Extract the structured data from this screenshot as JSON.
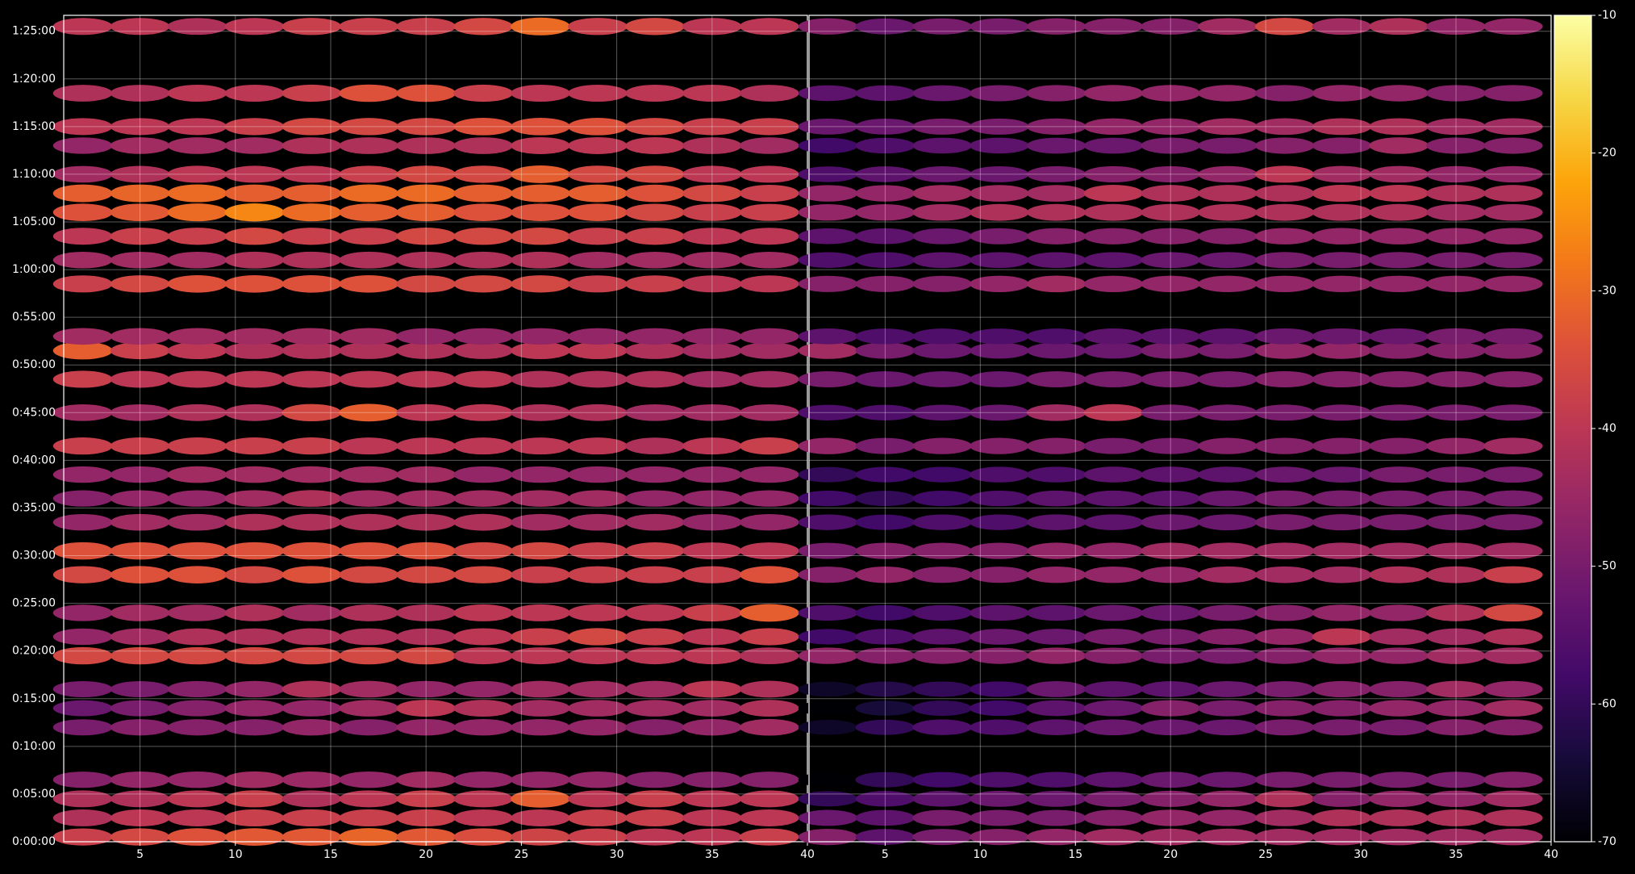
{
  "chart_data": [
    {
      "type": "heatmap",
      "colormap": "inferno",
      "grid": true,
      "xlim": [
        1,
        40
      ],
      "ylim": [
        0,
        5200
      ],
      "xticks": [
        5,
        10,
        15,
        20,
        25,
        30,
        35,
        40
      ],
      "yticks": [
        {
          "value": 0,
          "label": "0:00:00"
        },
        {
          "value": 300,
          "label": "0:05:00"
        },
        {
          "value": 600,
          "label": "0:10:00"
        },
        {
          "value": 900,
          "label": "0:15:00"
        },
        {
          "value": 1200,
          "label": "0:20:00"
        },
        {
          "value": 1500,
          "label": "0:25:00"
        },
        {
          "value": 1800,
          "label": "0:30:00"
        },
        {
          "value": 2100,
          "label": "0:35:00"
        },
        {
          "value": 2400,
          "label": "0:40:00"
        },
        {
          "value": 2700,
          "label": "0:45:00"
        },
        {
          "value": 3000,
          "label": "0:50:00"
        },
        {
          "value": 3300,
          "label": "0:55:00"
        },
        {
          "value": 3600,
          "label": "1:00:00"
        },
        {
          "value": 3900,
          "label": "1:05:00"
        },
        {
          "value": 4200,
          "label": "1:10:00"
        },
        {
          "value": 4500,
          "label": "1:15:00"
        },
        {
          "value": 4800,
          "label": "1:20:00"
        },
        {
          "value": 5100,
          "label": "1:25:00"
        }
      ],
      "x": [
        2,
        5,
        8,
        11,
        14,
        17,
        20,
        23,
        26,
        29,
        32,
        35,
        38
      ],
      "y": [
        30,
        150,
        270,
        390,
        720,
        840,
        960,
        1170,
        1290,
        1440,
        1680,
        1830,
        2010,
        2160,
        2310,
        2490,
        2700,
        2910,
        3090,
        3180,
        3510,
        3660,
        3810,
        3960,
        4080,
        4200,
        4380,
        4500,
        4710,
        5130
      ],
      "z": [
        [
          -38,
          -36,
          -34,
          -33,
          -33,
          -31,
          -33,
          -35,
          -37,
          -38,
          -40,
          -40,
          -38
        ],
        [
          -42,
          -40,
          -40,
          -38,
          -38,
          -38,
          -38,
          -40,
          -40,
          -38,
          -38,
          -40,
          -40
        ],
        [
          -42,
          -42,
          -40,
          -38,
          -42,
          -40,
          -38,
          -40,
          -32,
          -40,
          -38,
          -40,
          -40
        ],
        [
          -48,
          -46,
          -46,
          -44,
          -45,
          -46,
          -44,
          -46,
          -46,
          -46,
          -48,
          -48,
          -48
        ],
        [
          -50,
          -48,
          -48,
          -48,
          -46,
          -48,
          -46,
          -46,
          -46,
          -46,
          -48,
          -46,
          -44
        ],
        [
          -52,
          -50,
          -48,
          -46,
          -46,
          -44,
          -40,
          -42,
          -44,
          -44,
          -44,
          -44,
          -42
        ],
        [
          -50,
          -50,
          -48,
          -46,
          -42,
          -44,
          -46,
          -46,
          -44,
          -44,
          -44,
          -40,
          -42
        ],
        [
          -36,
          -36,
          -36,
          -36,
          -36,
          -36,
          -36,
          -40,
          -40,
          -40,
          -40,
          -40,
          -42
        ],
        [
          -46,
          -44,
          -42,
          -42,
          -42,
          -42,
          -42,
          -40,
          -38,
          -36,
          -38,
          -40,
          -38
        ],
        [
          -46,
          -44,
          -44,
          -42,
          -44,
          -42,
          -42,
          -40,
          -40,
          -40,
          -40,
          -38,
          -32
        ],
        [
          -36,
          -34,
          -34,
          -36,
          -34,
          -36,
          -36,
          -36,
          -38,
          -38,
          -38,
          -38,
          -34
        ],
        [
          -34,
          -34,
          -34,
          -34,
          -34,
          -34,
          -34,
          -36,
          -36,
          -38,
          -38,
          -40,
          -40
        ],
        [
          -46,
          -44,
          -44,
          -42,
          -42,
          -42,
          -42,
          -42,
          -44,
          -44,
          -44,
          -46,
          -46
        ],
        [
          -48,
          -46,
          -46,
          -44,
          -42,
          -44,
          -44,
          -44,
          -44,
          -44,
          -46,
          -46,
          -46
        ],
        [
          -46,
          -46,
          -44,
          -44,
          -44,
          -44,
          -44,
          -46,
          -46,
          -46,
          -46,
          -46,
          -46
        ],
        [
          -38,
          -38,
          -38,
          -38,
          -38,
          -40,
          -40,
          -40,
          -40,
          -40,
          -42,
          -40,
          -38
        ],
        [
          -44,
          -44,
          -42,
          -42,
          -36,
          -32,
          -40,
          -40,
          -42,
          -42,
          -44,
          -44,
          -44
        ],
        [
          -38,
          -40,
          -40,
          -40,
          -40,
          -40,
          -40,
          -40,
          -42,
          -42,
          -42,
          -44,
          -44
        ],
        [
          -32,
          -38,
          -40,
          -42,
          -42,
          -42,
          -42,
          -42,
          -40,
          -40,
          -42,
          -44,
          -44
        ],
        [
          -44,
          -44,
          -44,
          -44,
          -44,
          -44,
          -46,
          -46,
          -46,
          -46,
          -46,
          -46,
          -46
        ],
        [
          -38,
          -36,
          -34,
          -34,
          -34,
          -34,
          -36,
          -36,
          -36,
          -38,
          -38,
          -40,
          -40
        ],
        [
          -44,
          -44,
          -44,
          -42,
          -42,
          -42,
          -42,
          -42,
          -42,
          -44,
          -44,
          -44,
          -44
        ],
        [
          -40,
          -38,
          -38,
          -36,
          -38,
          -38,
          -36,
          -36,
          -36,
          -38,
          -38,
          -40,
          -40
        ],
        [
          -34,
          -33,
          -30,
          -26,
          -30,
          -32,
          -32,
          -34,
          -34,
          -34,
          -36,
          -38,
          -38
        ],
        [
          -32,
          -31,
          -30,
          -32,
          -32,
          -30,
          -30,
          -32,
          -32,
          -32,
          -34,
          -36,
          -38
        ],
        [
          -44,
          -42,
          -40,
          -40,
          -40,
          -38,
          -36,
          -36,
          -32,
          -36,
          -36,
          -40,
          -40
        ],
        [
          -46,
          -44,
          -44,
          -44,
          -42,
          -42,
          -42,
          -42,
          -40,
          -40,
          -40,
          -42,
          -44
        ],
        [
          -40,
          -40,
          -40,
          -38,
          -36,
          -36,
          -36,
          -34,
          -34,
          -34,
          -36,
          -38,
          -38
        ],
        [
          -42,
          -42,
          -40,
          -40,
          -38,
          -34,
          -34,
          -38,
          -40,
          -40,
          -40,
          -40,
          -42
        ],
        [
          -40,
          -40,
          -42,
          -40,
          -38,
          -38,
          -38,
          -36,
          -30,
          -38,
          -36,
          -40,
          -40
        ]
      ]
    },
    {
      "type": "heatmap",
      "colormap": "inferno",
      "grid": true,
      "sharey": true,
      "xlim": [
        1,
        40
      ],
      "ylim": [
        0,
        5200
      ],
      "xticks": [
        5,
        10,
        15,
        20,
        25,
        30,
        35,
        40
      ],
      "x": [
        2,
        5,
        8,
        11,
        14,
        17,
        20,
        23,
        26,
        29,
        32,
        35,
        38
      ],
      "y": [
        30,
        150,
        270,
        390,
        720,
        840,
        960,
        1170,
        1290,
        1440,
        1680,
        1830,
        2010,
        2160,
        2310,
        2490,
        2700,
        2910,
        3090,
        3180,
        3510,
        3660,
        3810,
        3960,
        4080,
        4200,
        4380,
        4500,
        4710,
        5130
      ],
      "z": [
        [
          -48,
          -54,
          -50,
          -48,
          -46,
          -44,
          -44,
          -44,
          -44,
          -44,
          -44,
          -44,
          -44
        ],
        [
          -52,
          -54,
          -50,
          -50,
          -50,
          -48,
          -46,
          -46,
          -44,
          -42,
          -42,
          -42,
          -42
        ],
        [
          -60,
          -56,
          -54,
          -52,
          -52,
          -50,
          -48,
          -46,
          -42,
          -48,
          -46,
          -46,
          -44
        ],
        [
          -70,
          -60,
          -58,
          -56,
          -56,
          -54,
          -52,
          -52,
          -50,
          -50,
          -50,
          -50,
          -48
        ],
        [
          -66,
          -60,
          -56,
          -56,
          -54,
          -52,
          -52,
          -52,
          -50,
          -50,
          -50,
          -48,
          -48
        ],
        [
          -70,
          -64,
          -60,
          -58,
          -54,
          -52,
          -48,
          -50,
          -48,
          -48,
          -46,
          -46,
          -44
        ],
        [
          -66,
          -62,
          -60,
          -58,
          -52,
          -54,
          -54,
          -52,
          -50,
          -48,
          -48,
          -44,
          -46
        ],
        [
          -46,
          -48,
          -48,
          -48,
          -46,
          -48,
          -50,
          -50,
          -48,
          -46,
          -46,
          -44,
          -44
        ],
        [
          -58,
          -56,
          -54,
          -52,
          -52,
          -50,
          -50,
          -48,
          -46,
          -40,
          -44,
          -44,
          -42
        ],
        [
          -56,
          -58,
          -56,
          -54,
          -54,
          -52,
          -52,
          -50,
          -48,
          -46,
          -46,
          -42,
          -36
        ],
        [
          -48,
          -46,
          -48,
          -48,
          -46,
          -46,
          -46,
          -44,
          -44,
          -44,
          -42,
          -42,
          -38
        ],
        [
          -50,
          -48,
          -48,
          -48,
          -46,
          -46,
          -44,
          -44,
          -44,
          -44,
          -44,
          -44,
          -44
        ],
        [
          -56,
          -58,
          -56,
          -56,
          -54,
          -54,
          -52,
          -52,
          -50,
          -50,
          -50,
          -50,
          -50
        ],
        [
          -58,
          -60,
          -58,
          -56,
          -54,
          -54,
          -54,
          -52,
          -50,
          -50,
          -50,
          -50,
          -50
        ],
        [
          -60,
          -58,
          -58,
          -56,
          -56,
          -54,
          -54,
          -54,
          -52,
          -52,
          -50,
          -50,
          -50
        ],
        [
          -46,
          -50,
          -48,
          -48,
          -48,
          -50,
          -50,
          -48,
          -48,
          -48,
          -48,
          -46,
          -44
        ],
        [
          -56,
          -56,
          -54,
          -52,
          -44,
          -40,
          -50,
          -50,
          -50,
          -50,
          -50,
          -50,
          -50
        ],
        [
          -50,
          -52,
          -52,
          -52,
          -50,
          -50,
          -50,
          -50,
          -48,
          -48,
          -48,
          -48,
          -48
        ],
        [
          -44,
          -50,
          -52,
          -52,
          -52,
          -52,
          -50,
          -50,
          -46,
          -46,
          -48,
          -48,
          -48
        ],
        [
          -54,
          -56,
          -56,
          -56,
          -56,
          -54,
          -54,
          -54,
          -52,
          -52,
          -52,
          -50,
          -50
        ],
        [
          -48,
          -48,
          -48,
          -46,
          -44,
          -46,
          -46,
          -46,
          -46,
          -46,
          -46,
          -46,
          -46
        ],
        [
          -56,
          -56,
          -54,
          -54,
          -54,
          -54,
          -52,
          -52,
          -50,
          -50,
          -50,
          -50,
          -50
        ],
        [
          -54,
          -54,
          -52,
          -50,
          -48,
          -48,
          -48,
          -48,
          -46,
          -46,
          -46,
          -46,
          -46
        ],
        [
          -46,
          -46,
          -44,
          -42,
          -42,
          -42,
          -42,
          -42,
          -42,
          -42,
          -42,
          -44,
          -44
        ],
        [
          -46,
          -46,
          -44,
          -44,
          -44,
          -40,
          -42,
          -42,
          -42,
          -40,
          -40,
          -42,
          -42
        ],
        [
          -56,
          -54,
          -52,
          -52,
          -50,
          -48,
          -48,
          -46,
          -40,
          -44,
          -44,
          -46,
          -46
        ],
        [
          -58,
          -56,
          -54,
          -54,
          -52,
          -52,
          -50,
          -50,
          -48,
          -48,
          -44,
          -48,
          -48
        ],
        [
          -52,
          -52,
          -50,
          -50,
          -48,
          -46,
          -46,
          -44,
          -44,
          -42,
          -42,
          -44,
          -44
        ],
        [
          -54,
          -54,
          -52,
          -50,
          -48,
          -46,
          -46,
          -46,
          -48,
          -46,
          -46,
          -48,
          -48
        ],
        [
          -48,
          -52,
          -50,
          -50,
          -48,
          -48,
          -48,
          -44,
          -36,
          -44,
          -42,
          -46,
          -46
        ]
      ],
      "colorbar": {
        "lim": [
          -70,
          -10
        ],
        "ticks": [
          -70,
          -60,
          -50,
          -40,
          -30,
          -20,
          -10
        ]
      }
    }
  ]
}
